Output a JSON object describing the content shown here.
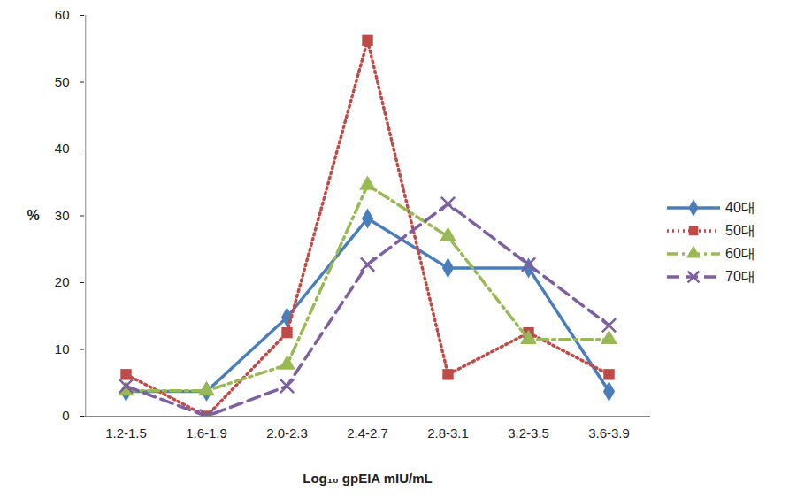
{
  "chart_data": {
    "type": "line",
    "x_label": "Log₁₀ gpEIA mIU/mL",
    "y_label": "%",
    "categories": [
      "1.2-1.5",
      "1.6-1.9",
      "2.0-2.3",
      "2.4-2.7",
      "2.8-3.1",
      "3.2-3.5",
      "3.6-3.9"
    ],
    "series": [
      {
        "name": "40대",
        "color": "#4a7ebb",
        "marker": "diamond",
        "line_style": "solid",
        "values": [
          3.7,
          3.7,
          14.8,
          29.6,
          22.2,
          22.2,
          3.7
        ]
      },
      {
        "name": "50대",
        "color": "#be4b48",
        "marker": "square",
        "line_style": "dotted",
        "values": [
          6.25,
          0,
          12.5,
          56.25,
          6.25,
          12.5,
          6.25
        ]
      },
      {
        "name": "60대",
        "color": "#98b954",
        "marker": "triangle",
        "line_style": "dashdot",
        "values": [
          3.8,
          3.8,
          7.7,
          34.6,
          26.9,
          11.5,
          11.5
        ]
      },
      {
        "name": "70대",
        "color": "#7d60a0",
        "marker": "times",
        "line_style": "dashed",
        "values": [
          4.5,
          0,
          4.5,
          22.7,
          31.8,
          22.7,
          13.6
        ]
      }
    ],
    "ylim": [
      0,
      60
    ],
    "yticks": [
      0,
      10,
      20,
      30,
      40,
      50,
      60
    ],
    "grid": false,
    "legend": "right"
  }
}
